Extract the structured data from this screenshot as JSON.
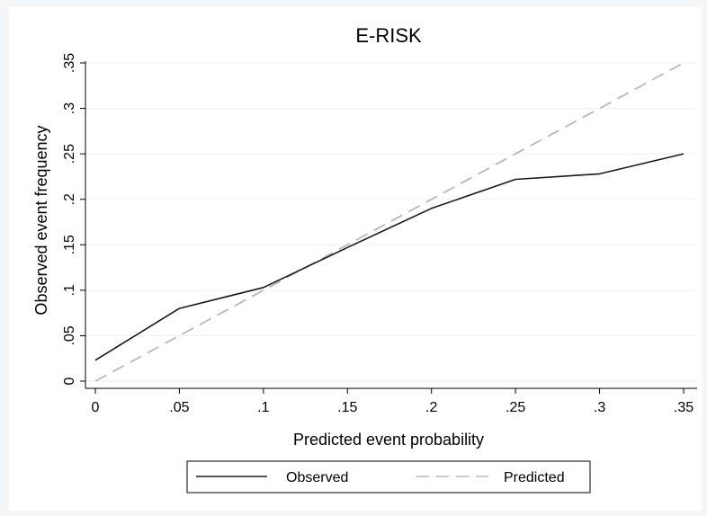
{
  "chart_data": {
    "type": "line",
    "title": "E-RISK",
    "xlabel": "Predicted event probability",
    "ylabel": "Observed event frequency",
    "x": [
      0,
      0.05,
      0.1,
      0.15,
      0.2,
      0.25,
      0.3,
      0.35
    ],
    "xlim": [
      0,
      0.35
    ],
    "ylim": [
      0,
      0.35
    ],
    "x_ticks": [
      0,
      0.05,
      0.1,
      0.15,
      0.2,
      0.25,
      0.3,
      0.35
    ],
    "x_tick_labels": [
      "0",
      ".05",
      ".1",
      ".15",
      ".2",
      ".25",
      ".3",
      ".35"
    ],
    "y_ticks": [
      0,
      0.05,
      0.1,
      0.15,
      0.2,
      0.25,
      0.3,
      0.35
    ],
    "y_tick_labels": [
      "0",
      ".05",
      ".1",
      ".15",
      ".2",
      ".25",
      ".3",
      ".35"
    ],
    "grid": true,
    "legend_position": "bottom",
    "series": [
      {
        "name": "Observed",
        "values": [
          0.023,
          0.08,
          0.103,
          0.147,
          0.19,
          0.222,
          0.228,
          0.25
        ],
        "color": "#1a1a1a",
        "style": "solid"
      },
      {
        "name": "Predicted",
        "values": [
          0,
          0.05,
          0.1,
          0.15,
          0.2,
          0.25,
          0.3,
          0.35
        ],
        "color": "#b8b8b8",
        "style": "dashed"
      }
    ],
    "colors": {
      "background": "#ffffff",
      "outer": "#f5f6f8",
      "grid": "#eef0f2"
    }
  }
}
